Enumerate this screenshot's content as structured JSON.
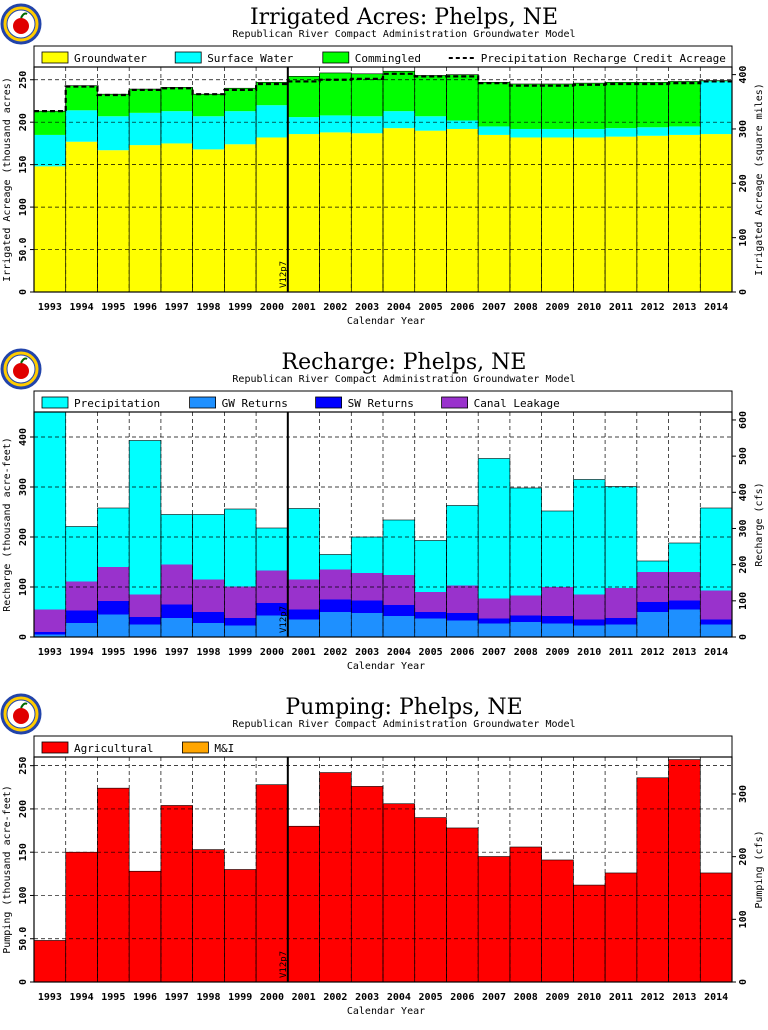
{
  "chart_data": [
    {
      "type": "bar",
      "title": "Irrigated Acres: Phelps, NE",
      "subtitle": "Republican River Compact Administration Groundwater Model",
      "xlabel": "Calendar Year",
      "ylabel": "Irrigated Acreage (thousand acres)",
      "ylabel_right": "Irrigated Acreage (square miles)",
      "ylim": [
        0,
        265
      ],
      "yticks": [
        0,
        50,
        100,
        150,
        200,
        250
      ],
      "ytick_labels": [
        "0",
        "50.0",
        "100",
        "150",
        "200",
        "250"
      ],
      "ylim_right": [
        0,
        414
      ],
      "yticks_right": [
        0,
        100,
        200,
        300,
        400
      ],
      "ytick_labels_right": [
        "0",
        "100",
        "200",
        "300",
        "400"
      ],
      "categories": [
        "1993",
        "1994",
        "1995",
        "1996",
        "1997",
        "1998",
        "1999",
        "2000",
        "2001",
        "2002",
        "2003",
        "2004",
        "2005",
        "2006",
        "2007",
        "2008",
        "2009",
        "2010",
        "2011",
        "2012",
        "2013",
        "2014"
      ],
      "stacked": true,
      "series": [
        {
          "name": "Groundwater",
          "color": "#ffff00",
          "values": [
            148,
            177,
            167,
            173,
            175,
            168,
            174,
            182,
            186,
            188,
            187,
            193,
            190,
            192,
            185,
            182,
            182,
            182,
            183,
            184,
            185,
            186
          ]
        },
        {
          "name": "Surface Water",
          "color": "#00ffff",
          "values": [
            37,
            37,
            40,
            38,
            38,
            39,
            39,
            38,
            20,
            20,
            20,
            20,
            17,
            10,
            10,
            10,
            10,
            10,
            10,
            10,
            10,
            62
          ]
        },
        {
          "name": "Commingled",
          "color": "#00ff00",
          "values": [
            28,
            29,
            26,
            28,
            28,
            26,
            27,
            27,
            48,
            50,
            50,
            47,
            48,
            54,
            52,
            53,
            53,
            54,
            54,
            53,
            53,
            1
          ]
        }
      ],
      "line_series": {
        "name": "Precipitation Recharge Credit Acreage",
        "style": "dashed",
        "values": [
          213,
          242,
          232,
          238,
          240,
          233,
          238,
          245,
          248,
          250,
          251,
          257,
          254,
          254,
          246,
          243,
          243,
          244,
          245,
          245,
          246,
          248
        ]
      },
      "marker": {
        "label": "V12p7",
        "between": [
          "2000",
          "2001"
        ]
      },
      "legend": "top"
    },
    {
      "type": "bar",
      "title": "Recharge: Phelps, NE",
      "subtitle": "Republican River Compact Administration Groundwater Model",
      "xlabel": "Calendar Year",
      "ylabel": "Recharge (thousand acre-feet)",
      "ylabel_right": "Recharge (cfs)",
      "ylim": [
        0,
        450
      ],
      "yticks": [
        0,
        100,
        200,
        300,
        400
      ],
      "ytick_labels": [
        "0",
        "100",
        "200",
        "300",
        "400"
      ],
      "ylim_right": [
        0,
        622
      ],
      "yticks_right": [
        0,
        100,
        200,
        300,
        400,
        500,
        600
      ],
      "ytick_labels_right": [
        "0",
        "100",
        "200",
        "300",
        "400",
        "500",
        "600"
      ],
      "categories": [
        "1993",
        "1994",
        "1995",
        "1996",
        "1997",
        "1998",
        "1999",
        "2000",
        "2001",
        "2002",
        "2003",
        "2004",
        "2005",
        "2006",
        "2007",
        "2008",
        "2009",
        "2010",
        "2011",
        "2012",
        "2013",
        "2014"
      ],
      "stacked": true,
      "series": [
        {
          "name": "GW Returns",
          "color": "#1e90ff",
          "values": [
            5,
            28,
            45,
            25,
            38,
            28,
            23,
            43,
            35,
            50,
            48,
            42,
            37,
            33,
            27,
            30,
            27,
            23,
            25,
            50,
            55,
            25
          ]
        },
        {
          "name": "SW Returns",
          "color": "#0000ff",
          "values": [
            5,
            25,
            27,
            15,
            27,
            22,
            15,
            25,
            20,
            25,
            25,
            22,
            13,
            15,
            10,
            13,
            15,
            12,
            13,
            20,
            18,
            10
          ]
        },
        {
          "name": "Canal Leakage",
          "color": "#9932cc",
          "values": [
            45,
            58,
            68,
            45,
            80,
            65,
            63,
            65,
            60,
            60,
            55,
            60,
            40,
            55,
            40,
            40,
            58,
            50,
            60,
            60,
            57,
            58
          ]
        },
        {
          "name": "Precipitation",
          "color": "#00ffff",
          "values": [
            395,
            110,
            118,
            308,
            100,
            130,
            155,
            85,
            142,
            30,
            72,
            110,
            103,
            160,
            280,
            215,
            152,
            230,
            203,
            22,
            58,
            165
          ]
        }
      ],
      "marker": {
        "label": "V12p7",
        "between": [
          "2000",
          "2001"
        ]
      },
      "legend": "top"
    },
    {
      "type": "bar",
      "title": "Pumping: Phelps, NE",
      "subtitle": "Republican River Compact Administration Groundwater Model",
      "xlabel": "Calendar Year",
      "ylabel": "Pumping (thousand acre-feet)",
      "ylabel_right": "Pumping (cfs)",
      "ylim": [
        0,
        260
      ],
      "yticks": [
        0,
        50,
        100,
        150,
        200,
        250
      ],
      "ytick_labels": [
        "0",
        "50.0",
        "100",
        "150",
        "200",
        "250"
      ],
      "ylim_right": [
        0,
        359
      ],
      "yticks_right": [
        0,
        100,
        200,
        300
      ],
      "ytick_labels_right": [
        "0",
        "100",
        "200",
        "300"
      ],
      "categories": [
        "1993",
        "1994",
        "1995",
        "1996",
        "1997",
        "1998",
        "1999",
        "2000",
        "2001",
        "2002",
        "2003",
        "2004",
        "2005",
        "2006",
        "2007",
        "2008",
        "2009",
        "2010",
        "2011",
        "2012",
        "2013",
        "2014"
      ],
      "stacked": true,
      "series": [
        {
          "name": "Agricultural",
          "color": "#ff0000",
          "values": [
            48,
            150,
            224,
            128,
            204,
            153,
            130,
            228,
            180,
            242,
            226,
            206,
            190,
            178,
            145,
            156,
            141,
            112,
            126,
            236,
            257,
            126
          ]
        },
        {
          "name": "M&I",
          "color": "#ffa500",
          "values": [
            0,
            0,
            0,
            0,
            0,
            0,
            0,
            0,
            0,
            0,
            0,
            0,
            0,
            0,
            0,
            0,
            0,
            0,
            0,
            0,
            0,
            0
          ]
        }
      ],
      "marker": {
        "label": "V12p7",
        "between": [
          "2000",
          "2001"
        ]
      },
      "legend": "top"
    }
  ]
}
